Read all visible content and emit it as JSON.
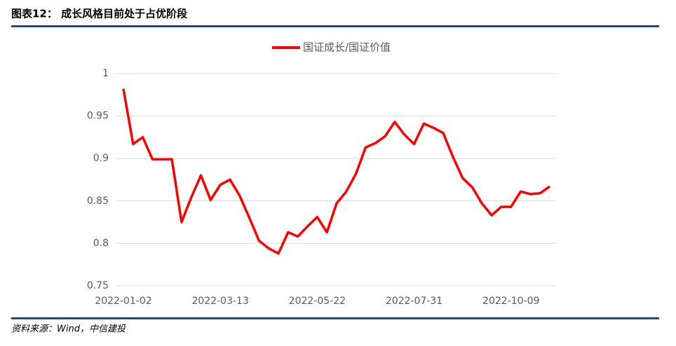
{
  "chart_data": {
    "type": "line",
    "title": "图表12：  成长风格目前处于占优阶段",
    "source": "资料来源：Wind，中信建投",
    "categories": [
      "2022-01-02",
      null,
      null,
      null,
      null,
      null,
      null,
      null,
      null,
      null,
      "2022-03-13",
      null,
      null,
      null,
      null,
      null,
      null,
      null,
      null,
      null,
      "2022-05-22",
      null,
      null,
      null,
      null,
      null,
      null,
      null,
      null,
      null,
      "2022-07-31",
      null,
      null,
      null,
      null,
      null,
      null,
      null,
      null,
      null,
      "2022-10-09",
      null,
      null,
      null,
      null
    ],
    "series": [
      {
        "name": "国证成长/国证价值",
        "color": "#ff0000",
        "values": [
          0.982,
          0.917,
          0.925,
          0.899,
          0.899,
          0.899,
          0.825,
          0.854,
          0.88,
          0.851,
          0.869,
          0.875,
          0.856,
          0.83,
          0.803,
          0.794,
          0.788,
          0.813,
          0.808,
          0.82,
          0.831,
          0.813,
          0.847,
          0.861,
          0.882,
          0.913,
          0.918,
          0.926,
          0.943,
          0.928,
          0.917,
          0.941,
          0.936,
          0.93,
          0.902,
          0.877,
          0.866,
          0.847,
          0.833,
          0.843,
          0.843,
          0.861,
          0.858,
          0.859,
          0.867
        ]
      }
    ],
    "ylim": [
      0.75,
      1
    ],
    "yticks": [
      0.75,
      0.8,
      0.85,
      0.9,
      0.95,
      1
    ],
    "grid": true,
    "legend": "top"
  }
}
